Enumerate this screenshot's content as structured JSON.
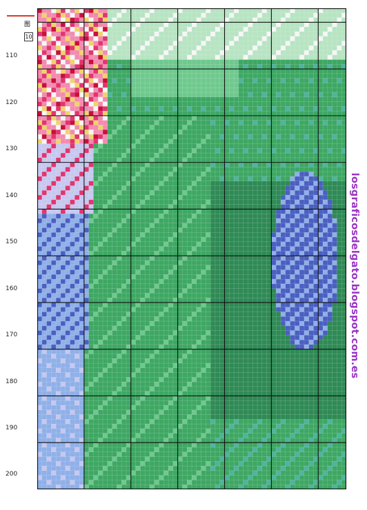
{
  "figure": {
    "label": "图",
    "number": "10"
  },
  "row_numbers": [
    "110",
    "120",
    "130",
    "140",
    "150",
    "160",
    "170",
    "180",
    "190",
    "200"
  ],
  "watermark": "losgraficosdelgato.blogspot.com.es",
  "palette": {
    "deep_green": "#2f8a55",
    "mid_green": "#3ea763",
    "light_green": "#6fc98e",
    "pale_green": "#b7e4c2",
    "sea_green": "#4fb3a0",
    "blue_violet": "#4b5fc0",
    "light_blue": "#8fb0e8",
    "lavender": "#c6c8f0",
    "pink": "#f28bb0",
    "hot_pink": "#e2356f",
    "crimson": "#c8103c",
    "white": "#f6f6f6",
    "yellow": "#f1d36a",
    "brown": "#b88a38",
    "grid_major": "#111111"
  }
}
